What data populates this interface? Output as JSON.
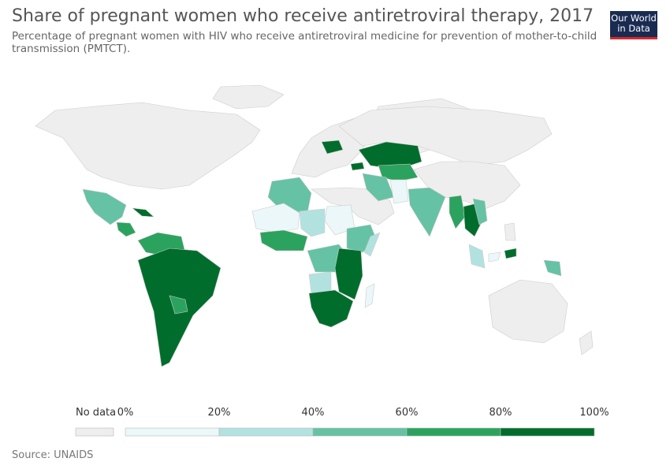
{
  "header": {
    "title": "Share of pregnant women who receive antiretroviral therapy, 2017",
    "subtitle": "Percentage of pregnant women with HIV who receive antiretroviral medicine for prevention of mother-to-child transmission (PMTCT).",
    "logo_line1": "Our World",
    "logo_line2": "in Data"
  },
  "legend": {
    "no_data_label": "No data",
    "ticks": [
      "0%",
      "20%",
      "40%",
      "60%",
      "80%",
      "100%"
    ],
    "colors": [
      "#ebf7f8",
      "#b2e2e0",
      "#66c2a4",
      "#2ca25f",
      "#006d2c"
    ],
    "no_data_color": "#eeeeee"
  },
  "colors": {
    "land": "#eeeeee",
    "border": "#cccccc",
    "c0": "#ebf7f8",
    "c1": "#b2e2e0",
    "c2": "#66c2a4",
    "c3": "#2ca25f",
    "c4": "#006d2c"
  },
  "footer": {
    "source": "Source: UNAIDS"
  }
}
